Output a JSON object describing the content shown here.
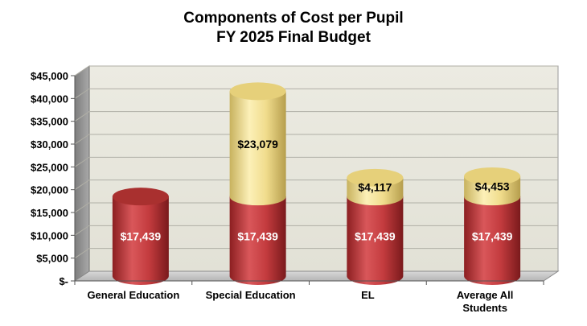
{
  "chart_data": {
    "type": "bar",
    "stacked": true,
    "three_d": true,
    "title": [
      "Components of Cost per Pupil",
      "FY 2025 Final Budget"
    ],
    "categories": [
      [
        "General Education"
      ],
      [
        "Special Education"
      ],
      [
        "EL"
      ],
      [
        "Average All",
        "Students"
      ]
    ],
    "series": [
      {
        "values": [
          17439,
          17439,
          17439,
          17439
        ],
        "labels": [
          "$17,439",
          "$17,439",
          "$17,439",
          "$17,439"
        ],
        "color": "#c0393b"
      },
      {
        "values": [
          0,
          23079,
          4117,
          4453
        ],
        "labels": [
          "",
          "$23,079",
          "$4,117",
          "$4,453"
        ],
        "color": "#f0dc8c"
      }
    ],
    "ylim": [
      0,
      45000
    ],
    "yticks": [
      {
        "value": 0,
        "label": "$-"
      },
      {
        "value": 5000,
        "label": "$5,000"
      },
      {
        "value": 10000,
        "label": "$10,000"
      },
      {
        "value": 15000,
        "label": "$15,000"
      },
      {
        "value": 20000,
        "label": "$20,000"
      },
      {
        "value": 25000,
        "label": "$25,000"
      },
      {
        "value": 30000,
        "label": "$30,000"
      },
      {
        "value": 35000,
        "label": "$35,000"
      },
      {
        "value": 40000,
        "label": "$40,000"
      },
      {
        "value": 45000,
        "label": "$45,000"
      }
    ],
    "grid": true,
    "legend": "none"
  }
}
